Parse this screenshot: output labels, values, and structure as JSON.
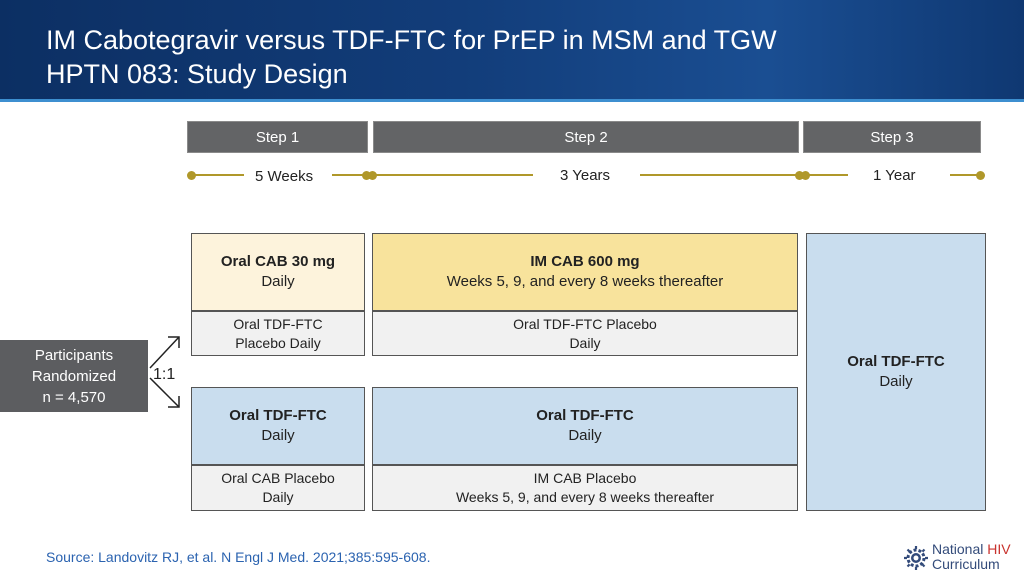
{
  "header": {
    "title_line1": "IM Cabotegravir versus TDF-FTC for PrEP in MSM and TGW",
    "title_line2": "HPTN 083: Study Design"
  },
  "steps": [
    {
      "label": "Step 1",
      "duration": "5 Weeks"
    },
    {
      "label": "Step 2",
      "duration": "3 Years"
    },
    {
      "label": "Step 3",
      "duration": "1 Year"
    }
  ],
  "participants": {
    "line1": "Participants",
    "line2": "Randomized",
    "line3": "n = 4,570",
    "ratio": "1:1"
  },
  "arm_cab": {
    "step1_active": {
      "title": "Oral CAB 30 mg",
      "detail": "Daily"
    },
    "step1_placebo": {
      "line1": "Oral TDF-FTC",
      "line2": "Placebo Daily"
    },
    "step2_active": {
      "title": "IM CAB 600 mg",
      "detail": "Weeks 5, 9, and every 8 weeks thereafter"
    },
    "step2_placebo": {
      "line1": "Oral TDF-FTC Placebo",
      "line2": "Daily"
    }
  },
  "arm_tdf": {
    "step1_active": {
      "title": "Oral TDF-FTC",
      "detail": "Daily"
    },
    "step1_placebo": {
      "line1": "Oral CAB Placebo",
      "line2": "Daily"
    },
    "step2_active": {
      "title": "Oral TDF-FTC",
      "detail": "Daily"
    },
    "step2_placebo": {
      "line1": "IM CAB Placebo",
      "line2": "Weeks 5, 9, and every 8 weeks thereafter"
    }
  },
  "step3": {
    "title": "Oral TDF-FTC",
    "detail": "Daily"
  },
  "source": "Source: Landovitz RJ, et al. N Engl J Med. 2021;385:595-608.",
  "logo": {
    "line1_a": "National",
    "line1_b": "HIV",
    "line2": "Curriculum"
  },
  "colors": {
    "header_bg": "#123d7a",
    "step_bar": "#636466",
    "timeline": "#b0982a",
    "cab_active_step1": "#fdf3dc",
    "cab_active_step2": "#f8e39c",
    "placebo": "#f1f1f1",
    "tdf_active": "#c9ddee",
    "source_text": "#2b63b0"
  }
}
